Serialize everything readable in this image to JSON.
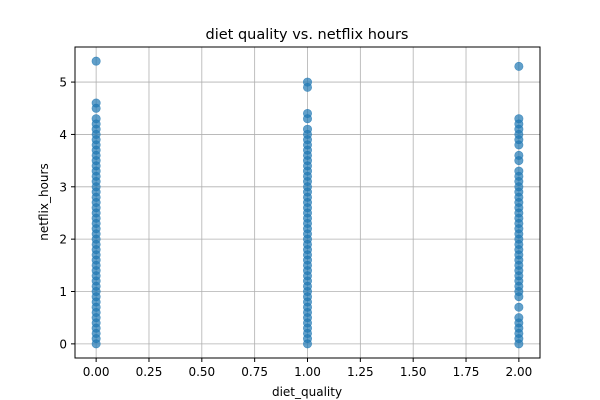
{
  "chart_data": {
    "type": "scatter",
    "title": "diet quality vs. netflix hours",
    "xlabel": "diet_quality",
    "ylabel": "netflix_hours",
    "xlim": [
      -0.1,
      2.1
    ],
    "ylim": [
      -0.27,
      5.67
    ],
    "xticks": [
      0.0,
      0.25,
      0.5,
      0.75,
      1.0,
      1.25,
      1.5,
      1.75,
      2.0
    ],
    "xtick_labels": [
      "0.00",
      "0.25",
      "0.50",
      "0.75",
      "1.00",
      "1.25",
      "1.50",
      "1.75",
      "2.00"
    ],
    "yticks": [
      0,
      1,
      2,
      3,
      4,
      5
    ],
    "ytick_labels": [
      "0",
      "1",
      "2",
      "3",
      "4",
      "5"
    ],
    "grid": true,
    "marker_color": "#1f77b4",
    "marker_alpha": 0.7,
    "series": [
      {
        "x_value": 0,
        "points": [
          5.4,
          4.6,
          4.5,
          4.3,
          4.2,
          4.1,
          4.0,
          3.9,
          3.8,
          3.7,
          3.6,
          3.5,
          3.4,
          3.3,
          3.2,
          3.1,
          3.0,
          2.9,
          2.8,
          2.7,
          2.6,
          2.5,
          2.4,
          2.3,
          2.2,
          2.1,
          2.0,
          1.9,
          1.8,
          1.7,
          1.6,
          1.5,
          1.4,
          1.3,
          1.2,
          1.1,
          1.0,
          0.9,
          0.8,
          0.7,
          0.6,
          0.5,
          0.4,
          0.3,
          0.2,
          0.1,
          0.0
        ]
      },
      {
        "x_value": 1,
        "points": [
          5.0,
          4.9,
          4.4,
          4.3,
          4.1,
          4.0,
          3.9,
          3.8,
          3.7,
          3.6,
          3.5,
          3.4,
          3.3,
          3.2,
          3.1,
          3.0,
          2.9,
          2.8,
          2.7,
          2.6,
          2.5,
          2.4,
          2.3,
          2.2,
          2.1,
          2.0,
          1.9,
          1.8,
          1.7,
          1.6,
          1.5,
          1.4,
          1.3,
          1.2,
          1.1,
          1.0,
          0.9,
          0.8,
          0.7,
          0.6,
          0.5,
          0.4,
          0.3,
          0.2,
          0.1,
          0.0
        ]
      },
      {
        "x_value": 2,
        "points": [
          5.3,
          4.3,
          4.2,
          4.1,
          4.0,
          3.9,
          3.8,
          3.6,
          3.5,
          3.3,
          3.2,
          3.1,
          3.0,
          2.9,
          2.8,
          2.7,
          2.6,
          2.5,
          2.4,
          2.3,
          2.2,
          2.1,
          2.0,
          1.9,
          1.8,
          1.7,
          1.6,
          1.5,
          1.4,
          1.3,
          1.2,
          1.1,
          1.0,
          0.9,
          0.7,
          0.5,
          0.4,
          0.3,
          0.2,
          0.1,
          0.0
        ]
      }
    ]
  }
}
